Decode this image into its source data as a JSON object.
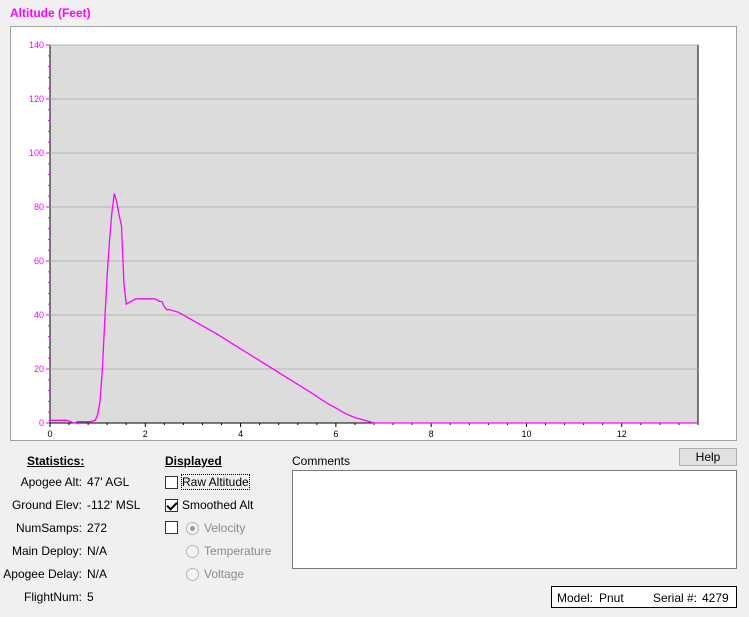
{
  "chart_data": {
    "type": "line",
    "title": "Altitude (Feet)",
    "xlim": [
      0,
      13.6
    ],
    "ylim": [
      0,
      140
    ],
    "x_ticks": [
      0,
      2,
      4,
      6,
      8,
      10,
      12
    ],
    "y_ticks": [
      0,
      20,
      40,
      60,
      80,
      100,
      120,
      140
    ],
    "grid": true,
    "line_color": "#ff00ff",
    "plot_background": "#dcdcdc",
    "series": [
      {
        "x": [
          0,
          0.35,
          0.5,
          0.6,
          0.85,
          0.95,
          1.0,
          1.05,
          1.1,
          1.15,
          1.2,
          1.25,
          1.3,
          1.35,
          1.4,
          1.45,
          1.5,
          1.55,
          1.6,
          1.7,
          1.8,
          2.0,
          2.2,
          2.3,
          2.35,
          2.4,
          2.45,
          2.5,
          2.7,
          3.0,
          3.5,
          4.0,
          4.5,
          5.0,
          5.5,
          5.8,
          6.0,
          6.2,
          6.4,
          6.6,
          6.8,
          7.0,
          8.0,
          10.0,
          12.0,
          13.6
        ],
        "y": [
          1,
          1,
          0,
          0.5,
          0.5,
          1,
          3,
          8,
          20,
          38,
          55,
          68,
          78,
          85,
          82,
          77,
          73,
          52,
          44,
          45,
          46,
          46,
          46,
          45,
          45,
          43,
          42,
          42,
          41,
          38,
          33,
          27.5,
          22,
          16.5,
          11,
          7.5,
          5.5,
          3.5,
          2,
          1,
          0,
          0,
          0,
          0,
          0,
          0
        ]
      }
    ]
  },
  "stats": {
    "heading": "Statistics:",
    "rows": [
      {
        "label": "Apogee Alt:",
        "value": "47' AGL"
      },
      {
        "label": "Ground Elev:",
        "value": "-112' MSL"
      },
      {
        "label": "NumSamps:",
        "value": "272"
      },
      {
        "label": "Main Deploy:",
        "value": "N/A"
      },
      {
        "label": "Apogee Delay:",
        "value": "N/A"
      },
      {
        "label": "FlightNum:",
        "value": "5"
      }
    ]
  },
  "displayed": {
    "heading": "Displayed",
    "raw_altitude": {
      "label": "Raw Altitude",
      "checked": false
    },
    "smoothed_alt": {
      "label": "Smoothed Alt",
      "checked": true
    },
    "velocity_check": {
      "checked": false
    },
    "velocity": {
      "label": "Velocity",
      "selected": true
    },
    "temperature": {
      "label": "Temperature",
      "selected": false
    },
    "voltage": {
      "label": "Voltage",
      "selected": false
    }
  },
  "comments": {
    "label": "Comments",
    "value": ""
  },
  "help_label": "Help",
  "device": {
    "model_label": "Model:",
    "model": "Pnut",
    "serial_label": "Serial #:",
    "serial": "4279"
  }
}
